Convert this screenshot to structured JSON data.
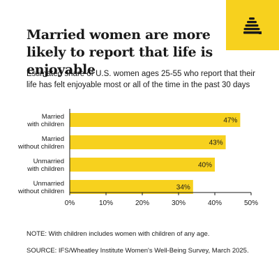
{
  "header": {
    "title": "Married women are more likely to report that life is enjoyable",
    "subtitle": "Estimated share of U.S. women ages 25-55 who report that their life has felt enjoyable most or all of the time in the past 30 days",
    "logo_icon": "beehive-icon"
  },
  "colors": {
    "bar": "#f7d11e",
    "accent": "#f7d11e",
    "text": "#1a1a1a",
    "axis": "#1a1a1a"
  },
  "chart_data": {
    "type": "bar",
    "orientation": "horizontal",
    "categories": [
      [
        "Married",
        "with children"
      ],
      [
        "Married",
        "without children"
      ],
      [
        "Unmarried",
        "with children"
      ],
      [
        "Unmarried",
        "without children"
      ]
    ],
    "values": [
      47,
      43,
      40,
      34
    ],
    "value_labels": [
      "47%",
      "43%",
      "40%",
      "34%"
    ],
    "xlim": [
      0,
      50
    ],
    "xticks": [
      0,
      10,
      20,
      30,
      40,
      50
    ],
    "xtick_labels": [
      "0%",
      "10%",
      "20%",
      "30%",
      "40%",
      "50%"
    ],
    "grid": false
  },
  "footer": {
    "note": "NOTE: With children includes women with children of any age.",
    "source": "SOURCE: IFS/Wheatley Institute Women's Well-Being Survey, March 2025."
  }
}
